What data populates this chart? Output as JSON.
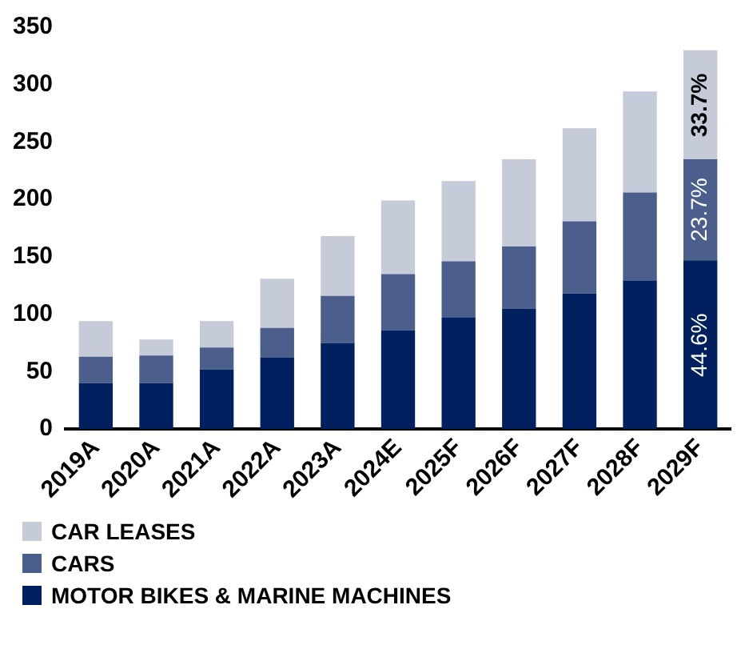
{
  "chart_data": {
    "type": "bar",
    "stacked": true,
    "categories": [
      "2019A",
      "2020A",
      "2021A",
      "2022A",
      "2023A",
      "2024E",
      "2025F",
      "2026F",
      "2027F",
      "2028F",
      "2029F"
    ],
    "series": [
      {
        "name": "MOTOR BIKES & MARINE MACHINES",
        "color": "#00205f",
        "values": [
          40,
          40,
          52,
          62,
          75,
          86,
          97,
          105,
          118,
          129,
          147
        ]
      },
      {
        "name": "CARS",
        "color": "#4b5e8c",
        "values": [
          23,
          24,
          19,
          26,
          41,
          49,
          49,
          54,
          63,
          77,
          88
        ]
      },
      {
        "name": "CAR LEASES",
        "color": "#c6cbda",
        "values": [
          31,
          14,
          23,
          43,
          52,
          64,
          70,
          76,
          81,
          88,
          95
        ]
      }
    ],
    "annotations": [
      {
        "text": "44.6%",
        "x": "2029F",
        "y": 73
      },
      {
        "text": "23.7%",
        "x": "2029F",
        "y": 191
      },
      {
        "text": "33.7%",
        "x": "2029F",
        "y": 282
      }
    ],
    "ylim": [
      0,
      350
    ],
    "yticks": [
      0,
      50,
      100,
      150,
      200,
      250,
      300,
      350
    ],
    "grid": false,
    "legend": "bottom left"
  }
}
